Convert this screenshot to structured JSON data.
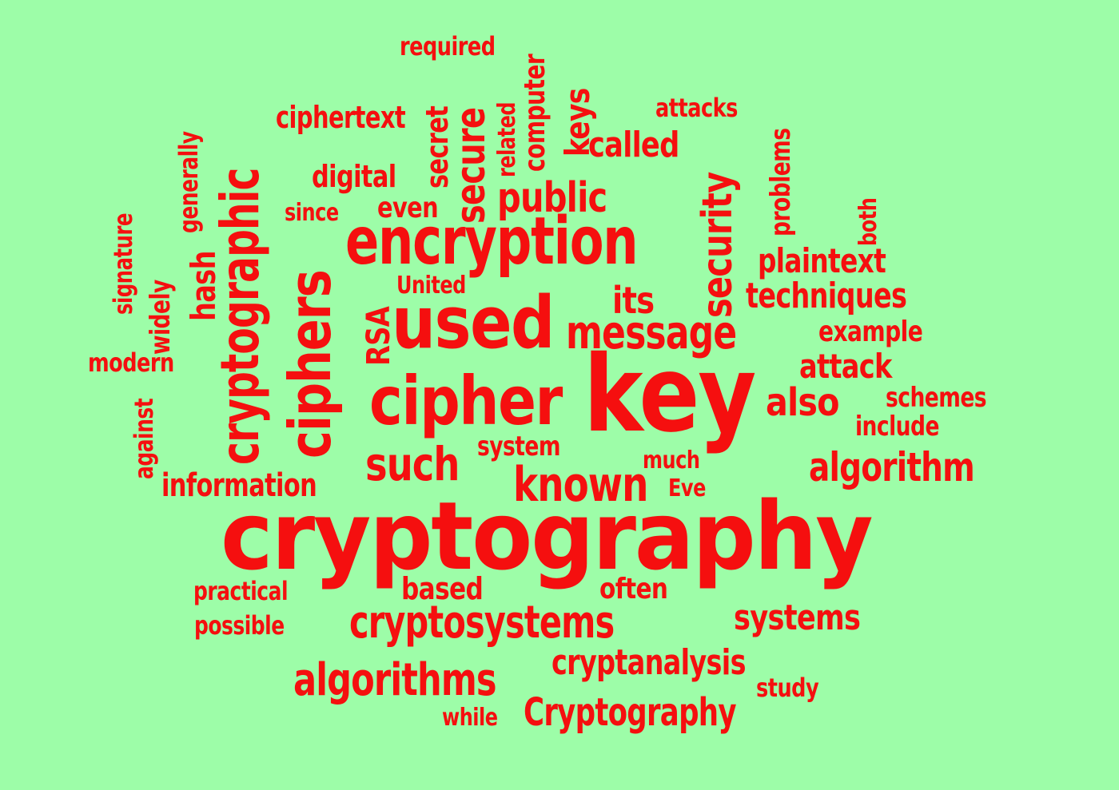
{
  "background_color": "#9dfda8",
  "word_color": "#f50f0f",
  "words": {
    "cryptography": "cryptography",
    "key": "key",
    "cipher": "cipher",
    "encryption": "encryption",
    "used": "used",
    "ciphers": "ciphers",
    "cryptographic": "cryptographic",
    "known": "known",
    "such": "such",
    "message": "message",
    "cryptosystems": "cryptosystems",
    "algorithms": "algorithms",
    "algorithm": "algorithm",
    "security": "security",
    "public": "public",
    "secure": "secure",
    "information": "information",
    "cryptanalysis": "cryptanalysis",
    "Cryptography": "Cryptography",
    "systems": "systems",
    "techniques": "techniques",
    "plaintext": "plaintext",
    "also": "also",
    "attack": "attack",
    "example": "example",
    "schemes": "schemes",
    "include": "include",
    "its": "its",
    "RSA": "RSA",
    "United": "United",
    "system": "system",
    "much": "much",
    "Eve": "Eve",
    "called": "called",
    "keys": "keys",
    "computer": "computer",
    "related": "related",
    "secret": "secret",
    "even": "even",
    "digital": "digital",
    "ciphertext": "ciphertext",
    "since": "since",
    "required": "required",
    "attacks": "attacks",
    "problems": "problems",
    "both": "both",
    "generally": "generally",
    "hash": "hash",
    "widely": "widely",
    "signature": "signature",
    "modern": "modern",
    "against": "against",
    "practical": "practical",
    "possible": "possible",
    "based": "based",
    "often": "often",
    "study": "study",
    "while": "while"
  }
}
